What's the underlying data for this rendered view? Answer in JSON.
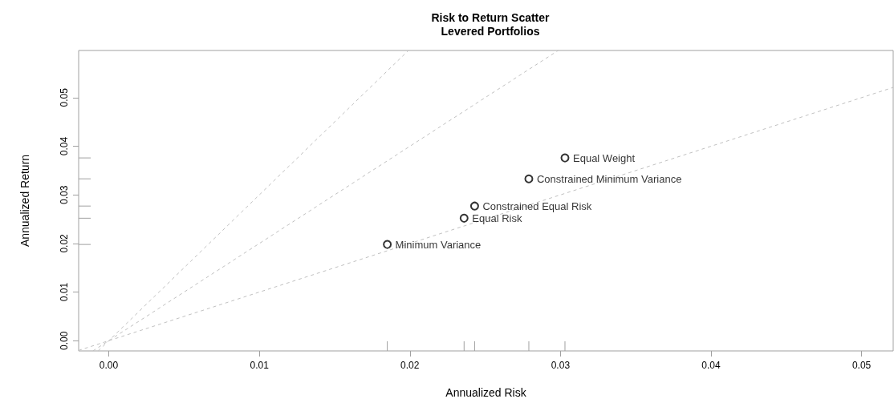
{
  "chart_data": {
    "type": "scatter",
    "title": "Risk to Return Scatter",
    "subtitle": "Levered Portfolios",
    "xlabel": "Annualized Risk",
    "ylabel": "Annualized Return",
    "marker": "circle",
    "grid": false,
    "xlim": [
      -0.002,
      0.0521
    ],
    "ylim": [
      -0.0021,
      0.0597
    ],
    "xticks": [
      {
        "value": 0,
        "label": "0.00"
      },
      {
        "value": 0.01,
        "label": "0.01"
      },
      {
        "value": 0.02,
        "label": "0.02"
      },
      {
        "value": 0.03,
        "label": "0.03"
      },
      {
        "value": 0.04,
        "label": "0.04"
      },
      {
        "value": 0.05,
        "label": "0.05"
      }
    ],
    "yticks": [
      {
        "value": 0,
        "label": "0.00"
      },
      {
        "value": 0.01,
        "label": "0.01"
      },
      {
        "value": 0.02,
        "label": "0.02"
      },
      {
        "value": 0.03,
        "label": "0.03"
      },
      {
        "value": 0.04,
        "label": "0.04"
      },
      {
        "value": 0.05,
        "label": "0.05"
      }
    ],
    "series": [
      {
        "color": "#000000",
        "x": [
          0.0185,
          0.0236,
          0.0243,
          0.0279,
          0.0303
        ],
        "values": [
          0.0198,
          0.0252,
          0.0277,
          0.0333,
          0.0376
        ]
      },
      {
        "type": "line",
        "color": "#c0c0c0",
        "line_style": "dashed",
        "marker": "none",
        "x": [
          -0.0007,
          0.0199
        ],
        "values": [
          -0.0021,
          0.0597
        ]
      },
      {
        "type": "line",
        "color": "#c0c0c0",
        "line_style": "dashed",
        "marker": "none",
        "x": [
          -0.00105,
          0.02985
        ],
        "values": [
          -0.0021,
          0.0597
        ]
      },
      {
        "type": "line",
        "color": "#c0c0c0",
        "line_style": "dashed",
        "marker": "none",
        "x": [
          -0.002,
          0.0521
        ],
        "values": [
          -0.002,
          0.0521
        ]
      }
    ],
    "annotations": [
      {
        "text": "Minimum Variance",
        "x": 0.0185,
        "y": 0.0198
      },
      {
        "text": "Equal Risk",
        "x": 0.0236,
        "y": 0.0252
      },
      {
        "text": "Constrained Equal Risk",
        "x": 0.0243,
        "y": 0.0277
      },
      {
        "text": "Constrained Minimum Variance",
        "x": 0.0279,
        "y": 0.0333
      },
      {
        "text": "Equal Weight",
        "x": 0.0303,
        "y": 0.0376
      }
    ]
  }
}
